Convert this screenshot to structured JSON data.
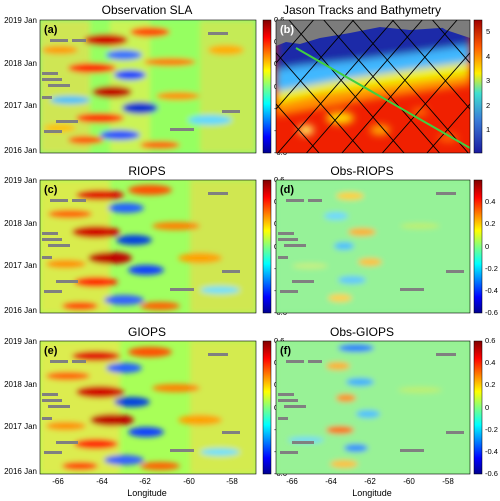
{
  "figure": {
    "xlabel": "Longitude",
    "x_ticks": [
      "-66",
      "-64",
      "-62",
      "-60",
      "-58"
    ],
    "y_ticks": [
      "2019 Jan",
      "2018 Jan",
      "2017 Jan",
      "2016 Jan"
    ],
    "cbar_ticks": [
      "0.6",
      "0.4",
      "0.2",
      "0",
      "-0.2",
      "-0.4",
      "-0.6"
    ],
    "bathy_cbar_ticks": [
      "5",
      "4",
      "3",
      "2",
      "1"
    ]
  },
  "chart_data": [
    {
      "type": "heatmap",
      "panel_label": "(a)",
      "title": "Observation SLA",
      "xlabel": "",
      "x_ticks": [
        -66,
        -64,
        -62,
        -60,
        -58
      ],
      "y_ticks": [
        "2019 Jan",
        "2018 Jan",
        "2017 Jan",
        "2016 Jan"
      ],
      "xlim": [
        -67.8,
        -57.8
      ],
      "zlim": [
        -0.6,
        0.6
      ],
      "colorbar_ticks": [
        0.6,
        0.4,
        0.2,
        0,
        -0.2,
        -0.4,
        -0.6
      ]
    },
    {
      "type": "heatmap",
      "panel_label": "(b)",
      "title": "Jason Tracks and Bathymetry",
      "colorbar_ticks": [
        5,
        4,
        3,
        2,
        1
      ],
      "zlim": [
        0,
        5.5
      ]
    },
    {
      "type": "heatmap",
      "panel_label": "(c)",
      "title": "RIOPS",
      "xlabel": "",
      "x_ticks": [
        -66,
        -64,
        -62,
        -60,
        -58
      ],
      "y_ticks": [
        "2019 Jan",
        "2018 Jan",
        "2017 Jan",
        "2016 Jan"
      ],
      "zlim": [
        -0.6,
        0.6
      ],
      "colorbar_ticks": [
        0.6,
        0.4,
        0.2,
        0,
        -0.2,
        -0.4,
        -0.6
      ]
    },
    {
      "type": "heatmap",
      "panel_label": "(d)",
      "title": "Obs-RIOPS",
      "xlabel": "",
      "x_ticks": [
        -66,
        -64,
        -62,
        -60,
        -58
      ],
      "zlim": [
        -0.6,
        0.6
      ],
      "colorbar_ticks": [
        0.6,
        0.4,
        0.2,
        0,
        -0.2,
        -0.4,
        -0.6
      ]
    },
    {
      "type": "heatmap",
      "panel_label": "(e)",
      "title": "GIOPS",
      "xlabel": "Longitude",
      "x_ticks": [
        -66,
        -64,
        -62,
        -60,
        -58
      ],
      "y_ticks": [
        "2019 Jan",
        "2018 Jan",
        "2017 Jan",
        "2016 Jan"
      ],
      "zlim": [
        -0.6,
        0.6
      ],
      "colorbar_ticks": [
        0.6,
        0.4,
        0.2,
        0,
        -0.2,
        -0.4,
        -0.6
      ]
    },
    {
      "type": "heatmap",
      "panel_label": "(f)",
      "title": "Obs-GIOPS",
      "xlabel": "Longitude",
      "x_ticks": [
        -66,
        -64,
        -62,
        -60,
        -58
      ],
      "zlim": [
        -0.6,
        0.6
      ],
      "colorbar_ticks": [
        0.6,
        0.4,
        0.2,
        0,
        -0.2,
        -0.4,
        -0.6
      ]
    }
  ]
}
